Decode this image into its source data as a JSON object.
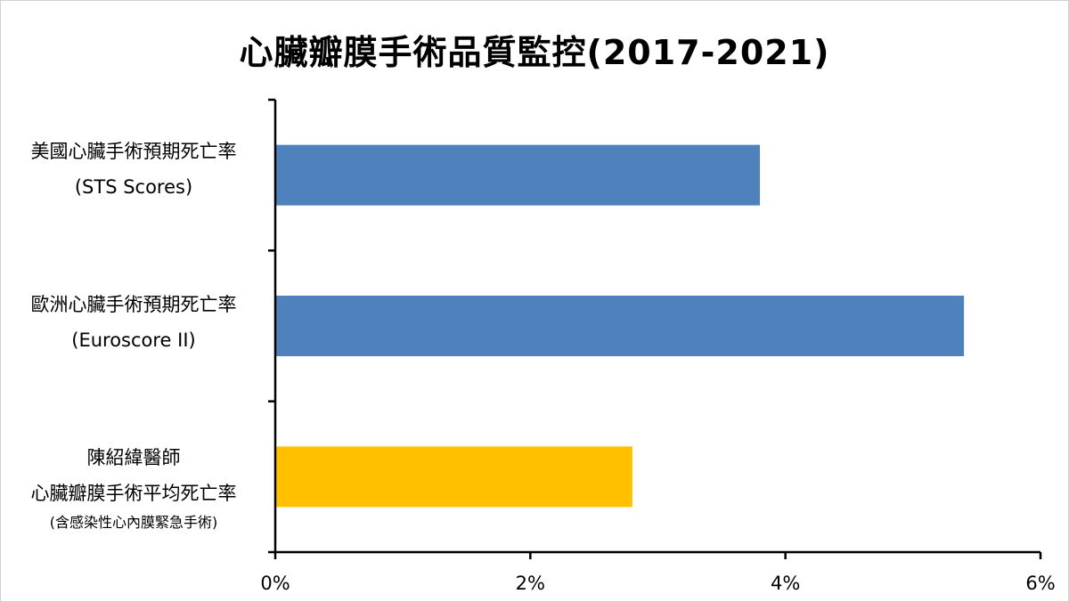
{
  "chart_data": {
    "type": "bar",
    "orientation": "horizontal",
    "title": "心臟瓣膜手術品質監控(2017-2021)",
    "categories": [
      [
        "美國心臟手術預期死亡率",
        "(STS Scores)"
      ],
      [
        "歐洲心臟手術預期死亡率",
        "(Euroscore II)"
      ],
      [
        "陳紹緯醫師",
        "心臟瓣膜手術平均死亡率",
        "(含感染性心內膜緊急手術)"
      ]
    ],
    "values": [
      3.8,
      5.4,
      2.8
    ],
    "bar_colors": [
      "#4f81bd",
      "#4f81bd",
      "#ffc000"
    ],
    "xlim": [
      0,
      6
    ],
    "xticks": [
      0,
      2,
      4,
      6
    ],
    "xtick_labels": [
      "0%",
      "2%",
      "4%",
      "6%"
    ],
    "grid": false,
    "legend": "none"
  }
}
